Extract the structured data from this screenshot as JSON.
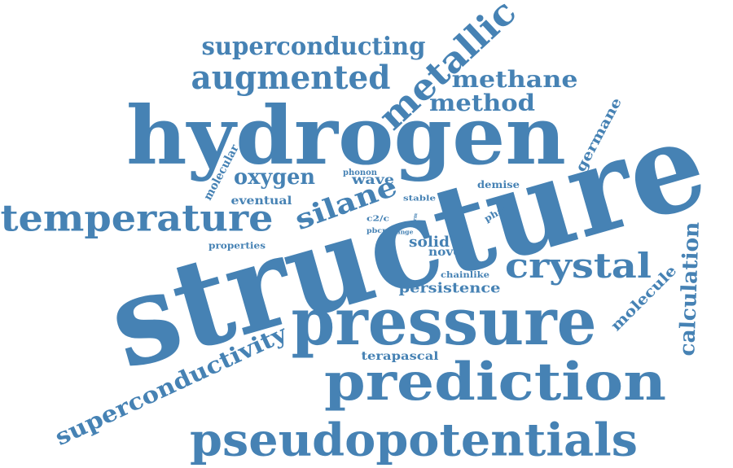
{
  "color": "#4682b4",
  "words": {
    "structure": "structure",
    "hydrogen": "hydrogen",
    "pressure": "pressure",
    "prediction": "prediction",
    "pseudopotentials": "pseudopotentials",
    "temperature": "temperature",
    "superconductivity": "superconductivity",
    "metallic": "metallic",
    "superconducting": "superconducting",
    "augmented": "augmented",
    "methane": "methane",
    "method": "method",
    "crystal": "crystal",
    "silane": "silane",
    "oxygen": "oxygen",
    "calculation": "calculation",
    "molecule": "molecule",
    "germane": "germane",
    "molecular": "molecular",
    "wave": "wave",
    "phonon": "phonon",
    "eventual": "eventual",
    "solid": "solid",
    "novel": "novel",
    "persistence": "persistence",
    "terapascal": "terapascal",
    "properties": "properties",
    "demise": "demise",
    "phase": "phase",
    "stable": "stable",
    "c2c": "c2/c",
    "pbcn": "pbcn",
    "range": "range",
    "form": "form",
    "chainlike": "chainlike"
  }
}
